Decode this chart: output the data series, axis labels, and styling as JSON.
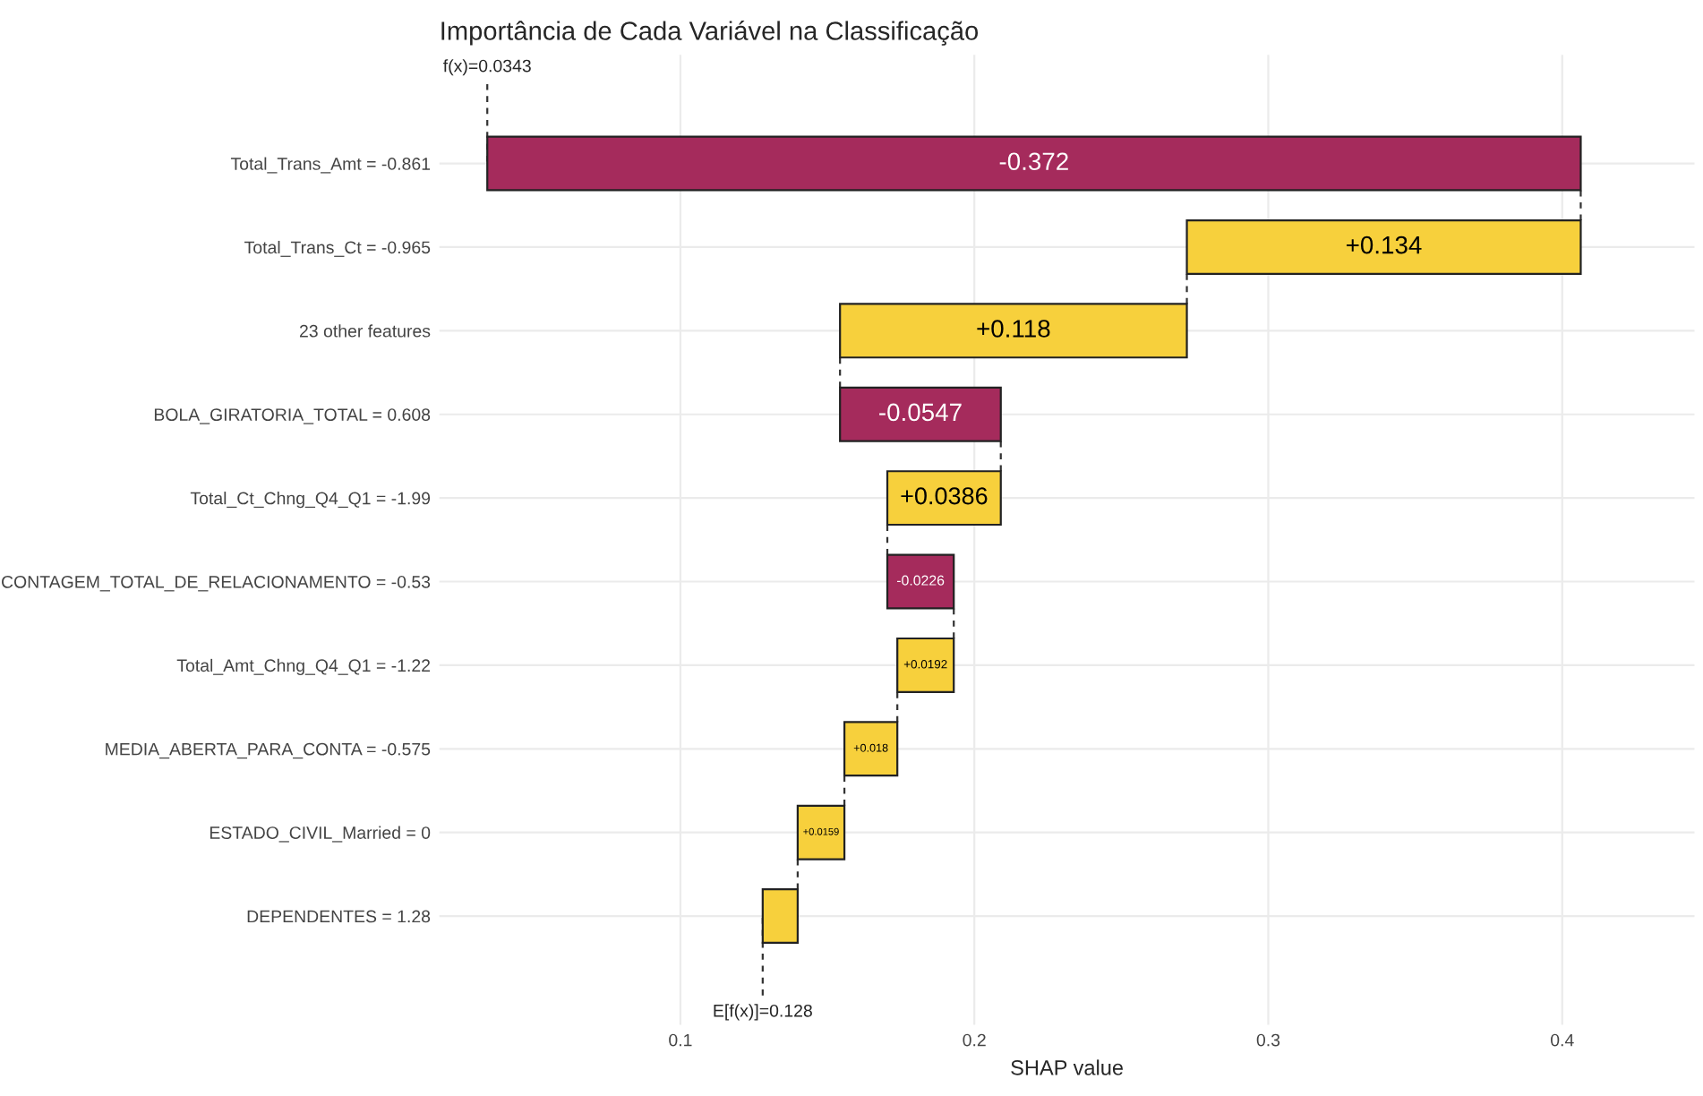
{
  "chart_data": {
    "type": "bar",
    "orientation": "horizontal",
    "title": "Importância de Cada Variável na Classificação",
    "xlabel": "SHAP value",
    "categories": [
      "Total_Trans_Amt = -0.861",
      "Total_Trans_Ct = -0.965",
      "23 other features",
      "BOLA_GIRATORIA_TOTAL = 0.608",
      "Total_Ct_Chng_Q4_Q1 = -1.99",
      "CONTAGEM_TOTAL_DE_RELACIONAMENTO = -0.53",
      "Total_Amt_Chng_Q4_Q1 = -1.22",
      "MEDIA_ABERTA_PARA_CONTA = -0.575",
      "ESTADO_CIVIL_Married = 0",
      "DEPENDENTES = 1.28"
    ],
    "values": [
      -0.372,
      0.134,
      0.118,
      -0.0547,
      0.0386,
      -0.0226,
      0.0192,
      0.018,
      0.0159,
      0.0119
    ],
    "base": [
      0.4063,
      0.2723,
      0.1543,
      0.209,
      0.1704,
      0.193,
      0.1738,
      0.1558,
      0.1399,
      0.128
    ],
    "value_labels": [
      "-0.372",
      "+0.134",
      "+0.118",
      "-0.0547",
      "+0.0386",
      "-0.0226",
      "+0.0192",
      "+0.018",
      "+0.0159",
      null
    ],
    "colors": [
      "#a52b5c",
      "#f7d03c",
      "#f7d03c",
      "#a52b5c",
      "#f7d03c",
      "#a52b5c",
      "#f7d03c",
      "#f7d03c",
      "#f7d03c",
      "#f7d03c"
    ],
    "xlim": [
      0.018,
      0.445
    ],
    "xticks": [
      0.1,
      0.2,
      0.3,
      0.4
    ],
    "grid": true,
    "annotations": [
      {
        "text": "f(x)=0.0343",
        "x": 0.0343,
        "y": "Total_Trans_Amt = -0.861"
      },
      {
        "text": "E[f(x)]=0.128",
        "x": 0.128,
        "y": "DEPENDENTES = 1.28"
      }
    ]
  }
}
